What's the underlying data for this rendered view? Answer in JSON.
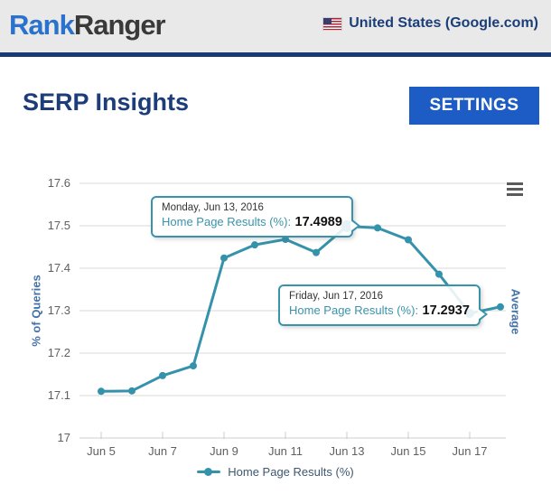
{
  "header": {
    "logo_part1": "Rank",
    "logo_part2": "Ranger",
    "region_label": "United States (Google.com)"
  },
  "page": {
    "title": "SERP Insights",
    "settings_button": "SETTINGS"
  },
  "chart_data": {
    "type": "line",
    "ylabel": "% of Queries",
    "right_axis_label": "Average",
    "ylim": [
      17,
      17.6
    ],
    "yticks": [
      "17",
      "17.1",
      "17.2",
      "17.3",
      "17.4",
      "17.5",
      "17.6"
    ],
    "xticks": [
      "Jun 5",
      "Jun 7",
      "Jun 9",
      "Jun 11",
      "Jun 13",
      "Jun 15",
      "Jun 17"
    ],
    "grid": true,
    "legend_position": "bottom",
    "series": [
      {
        "name": "Home Page Results (%)",
        "color": "#3592ab",
        "x": [
          "Jun 5",
          "Jun 6",
          "Jun 7",
          "Jun 8",
          "Jun 9",
          "Jun 10",
          "Jun 11",
          "Jun 12",
          "Jun 13",
          "Jun 14",
          "Jun 15",
          "Jun 16",
          "Jun 17",
          "Jun 18"
        ],
        "values": [
          17.11,
          17.111,
          17.147,
          17.17,
          17.424,
          17.455,
          17.468,
          17.437,
          17.4989,
          17.495,
          17.467,
          17.386,
          17.2937,
          17.309
        ],
        "highlighted_indices": [
          8,
          12
        ]
      }
    ],
    "tooltips": [
      {
        "date": "Monday, Jun 13, 2016",
        "label": "Home Page Results (%):",
        "value": "17.4989"
      },
      {
        "date": "Friday, Jun 17, 2016",
        "label": "Home Page Results (%):",
        "value": "17.2937"
      }
    ],
    "legend": {
      "items": [
        {
          "label": "Home Page Results (%)",
          "color": "#3592ab"
        }
      ]
    }
  },
  "colors": {
    "series_teal": "#3592ab",
    "navy": "#1a3a72",
    "button_blue": "#1d5cc4",
    "logo_blue": "#2b72cc",
    "axis_title_blue": "#4572a7",
    "gridline": "#d8d8d8",
    "header_bg": "#e9e9e9"
  }
}
